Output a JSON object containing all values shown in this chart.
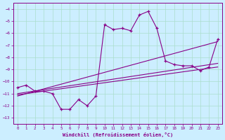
{
  "xlabel": "Windchill (Refroidissement éolien,°C)",
  "bg_color": "#cceeff",
  "grid_color": "#aaddcc",
  "line_color": "#880088",
  "xlim": [
    -0.5,
    23.5
  ],
  "ylim": [
    -13.5,
    -3.5
  ],
  "main_x": [
    0,
    1,
    2,
    3,
    4,
    5,
    6,
    7,
    8,
    9,
    10,
    11,
    12,
    13,
    14,
    15,
    16,
    17,
    18,
    19,
    20,
    21,
    22,
    23
  ],
  "main_y": [
    -10.5,
    -10.3,
    -10.8,
    -10.8,
    -11.0,
    -12.3,
    -12.3,
    -11.5,
    -12.0,
    -11.2,
    -5.3,
    -5.7,
    -5.6,
    -5.8,
    -4.5,
    -4.2,
    -5.6,
    -8.3,
    -8.6,
    -8.7,
    -8.7,
    -9.1,
    -8.8,
    -6.5
  ],
  "line1_x": [
    0,
    23
  ],
  "line1_y": [
    -11.0,
    -8.5
  ],
  "line2_x": [
    0,
    23
  ],
  "line2_y": [
    -11.1,
    -8.8
  ],
  "line3_x": [
    0,
    23
  ],
  "line3_y": [
    -11.2,
    -6.7
  ]
}
